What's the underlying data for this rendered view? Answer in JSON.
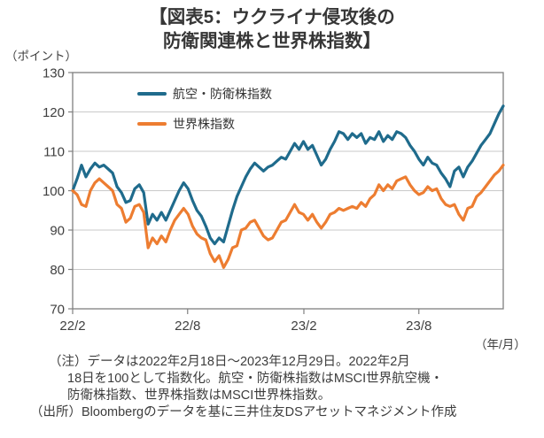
{
  "header": {
    "title_line1": "【図表5：ウクライナ侵攻後の",
    "title_line2": "防衛関連株と世界株指数】"
  },
  "chart_data": {
    "type": "line",
    "title": "図表5：ウクライナ侵攻後の防衛関連株と世界株指数",
    "y_axis_unit": "（ポイント）",
    "x_axis_unit": "（年/月）",
    "ylim": [
      70,
      130
    ],
    "y_ticks": [
      70,
      80,
      90,
      100,
      110,
      120,
      130
    ],
    "x_ticks": [
      {
        "label": "22/2",
        "pos": 0
      },
      {
        "label": "22/8",
        "pos": 0.267
      },
      {
        "label": "23/2",
        "pos": 0.537
      },
      {
        "label": "23/8",
        "pos": 0.804
      }
    ],
    "x_range_note": "2022年2月18日～2023年12月29日（週次サンプル、2022年2月18日=100）",
    "grid": "horizontal",
    "legend_position": "top-left-inside",
    "colors": {
      "grid": "#c9c9c9",
      "axis": "#808080",
      "border": "#7f7f7f"
    },
    "series": [
      {
        "name": "航空・防衛株指数",
        "color": "#1f6b8c",
        "values": [
          100,
          103,
          106.5,
          103.5,
          105.5,
          107,
          106,
          106.5,
          105.5,
          104.5,
          101,
          99.5,
          97,
          97.5,
          100.5,
          101.5,
          99.5,
          91.5,
          94,
          92.5,
          94.5,
          92.5,
          95,
          97.5,
          100,
          102,
          100.5,
          97.5,
          95,
          93.5,
          91,
          88,
          86.5,
          88,
          87,
          91,
          95,
          98.5,
          101,
          103.5,
          105.5,
          107,
          106,
          105,
          106,
          106.5,
          107.5,
          108.5,
          108,
          110,
          112,
          110.5,
          112.5,
          110.5,
          111.5,
          109,
          106.5,
          108,
          110.5,
          112.5,
          115,
          114.5,
          113,
          114.5,
          113.5,
          114.5,
          112,
          113.5,
          113,
          115,
          112.5,
          114,
          113,
          115,
          114.5,
          113.5,
          111.5,
          110,
          108,
          106.5,
          108.5,
          107,
          106.5,
          104.5,
          103,
          101,
          105,
          106,
          103.5,
          106,
          107.5,
          109.5,
          111.5,
          113,
          114.5,
          117,
          119.5,
          121.5
        ]
      },
      {
        "name": "世界株指数",
        "color": "#ed7d31",
        "values": [
          100,
          99,
          96.5,
          96,
          100,
          102,
          103,
          102,
          101,
          100,
          96.5,
          95.5,
          92,
          93,
          96,
          96.5,
          94.5,
          85.5,
          88,
          86.5,
          88.5,
          87,
          90,
          92.5,
          94,
          95.5,
          94,
          91,
          89,
          88,
          87.5,
          84,
          82,
          83.5,
          80.5,
          82.5,
          85.5,
          86,
          90,
          90.5,
          92,
          92.5,
          90.5,
          88.5,
          87.5,
          88,
          90,
          92,
          92.5,
          94.5,
          96.5,
          94.5,
          94,
          92.5,
          94,
          92,
          90.5,
          92,
          94,
          94.5,
          95.5,
          95,
          95.5,
          96,
          95.5,
          97,
          96,
          98,
          99,
          101.5,
          100,
          101.5,
          100.5,
          102.5,
          103,
          103.5,
          101.5,
          100,
          99,
          99.5,
          101,
          100,
          100.5,
          98,
          96.5,
          96,
          96.5,
          94,
          92.5,
          95.5,
          96,
          98.5,
          99.5,
          101,
          102.5,
          104,
          105,
          106.5
        ]
      }
    ]
  },
  "notes": {
    "note_label": "（注）",
    "line1": "データは2022年2月18日～2023年12月29日。2022年2月",
    "line2": "18日を100として指数化。航空・防衛株指数はMSCI世界航空機・",
    "line3": "防衛株指数、世界株指数はMSCI世界株指数。",
    "source_label": "（出所）",
    "source_text": "Bloombergのデータを基に三井住友DSアセットマネジメント作成"
  }
}
